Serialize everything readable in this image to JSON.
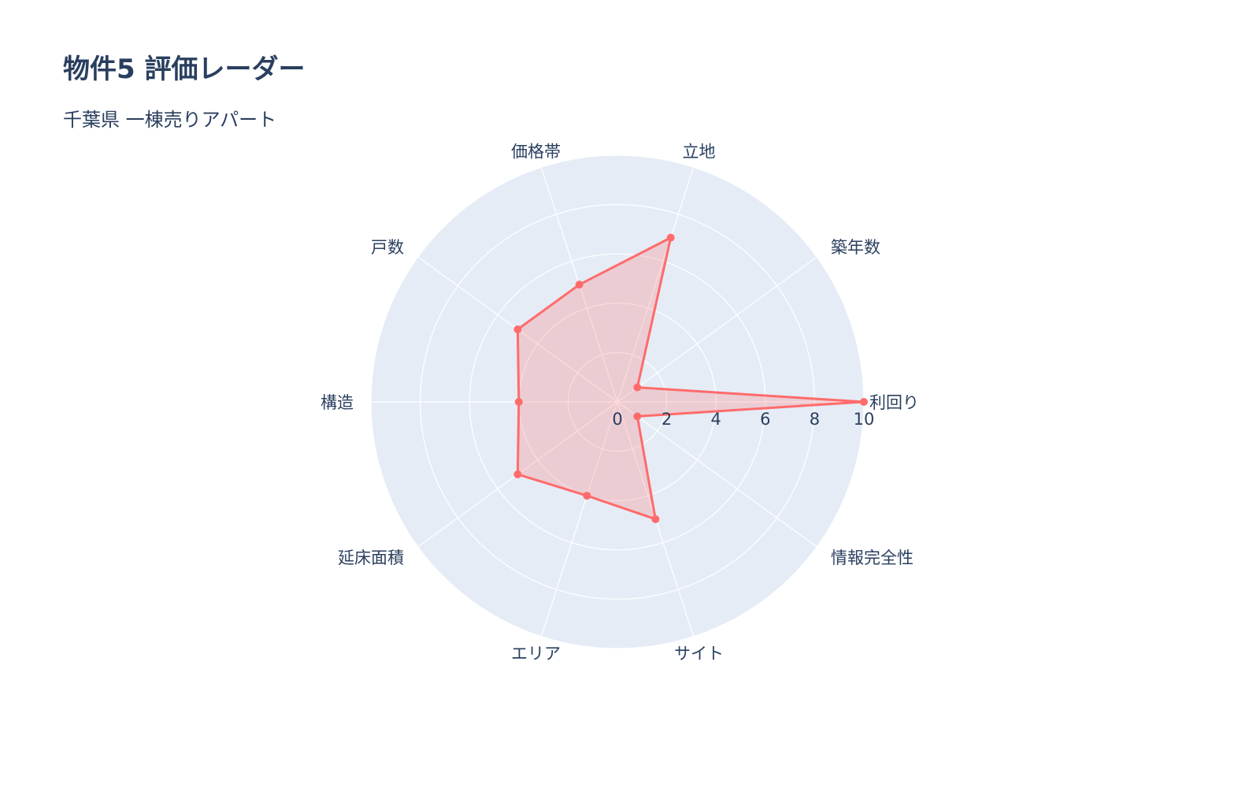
{
  "title": "物件5 評価レーダー",
  "subtitle": "千葉県 一棟売りアパート",
  "chart_data": {
    "type": "radar",
    "title": "物件5 評価レーダー",
    "subtitle": "千葉県 一棟売りアパート",
    "categories": [
      "利回り",
      "築年数",
      "立地",
      "価格帯",
      "戸数",
      "構造",
      "延床面積",
      "エリア",
      "サイト",
      "情報完全性"
    ],
    "values": [
      10,
      1,
      7,
      5,
      5,
      4,
      5,
      4,
      5,
      1
    ],
    "radial_range": [
      0,
      10
    ],
    "radial_ticks": [
      "0",
      "2",
      "4",
      "6",
      "8",
      "10"
    ],
    "grid": true,
    "colors": {
      "line": "#FF6B6B",
      "fill": "rgba(255,107,107,0.25)",
      "polar_bg": "#E5ECF6",
      "grid": "#FFFFFF"
    }
  }
}
